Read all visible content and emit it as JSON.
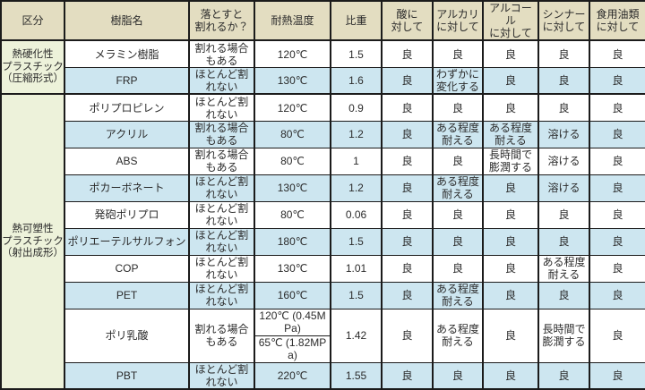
{
  "table": {
    "columns": [
      "区分",
      "樹脂名",
      "落とすと\n割れるか？",
      "耐熱温度",
      "比重",
      "酸に\n対して",
      "アルカリ\nに対して",
      "アルコール\nに対して",
      "シンナー\nに対して",
      "食用油類\nに対して"
    ],
    "colors": {
      "header_bg": "#e3ddc1",
      "category_bg": "#edf2da",
      "row_blue_bg": "#cde6f0",
      "row_white_bg": "#ffffff",
      "border": "#1b1b1b"
    },
    "sections": [
      {
        "category": "熱硬化性\nプラスチック\n（圧縮形式）",
        "rows": [
          {
            "name": "メラミン樹脂",
            "drop": "割れる場合もある",
            "temp": "120℃",
            "gravity": "1.5",
            "acid": "良",
            "alkali": "良",
            "alcohol": "良",
            "thinner": "良",
            "oil": "良",
            "shade": "white"
          },
          {
            "name": "FRP",
            "drop": "ほとんど割れない",
            "temp": "130℃",
            "gravity": "1.6",
            "acid": "良",
            "alkali": "わずかに変化する",
            "alcohol": "良",
            "thinner": "良",
            "oil": "良",
            "shade": "blue"
          }
        ]
      },
      {
        "category": "熱可塑性\nプラスチック\n（射出成形）",
        "rows": [
          {
            "name": "ポリプロピレン",
            "drop": "ほとんど割れない",
            "temp": "120℃",
            "gravity": "0.9",
            "acid": "良",
            "alkali": "良",
            "alcohol": "良",
            "thinner": "良",
            "oil": "良",
            "shade": "white"
          },
          {
            "name": "アクリル",
            "drop": "割れる場合もある",
            "temp": "80℃",
            "gravity": "1.2",
            "acid": "良",
            "alkali": "ある程度耐える",
            "alcohol": "ある程度耐える",
            "thinner": "溶ける",
            "oil": "良",
            "shade": "blue"
          },
          {
            "name": "ABS",
            "drop": "割れる場合もある",
            "temp": "80℃",
            "gravity": "1",
            "acid": "良",
            "alkali": "良",
            "alcohol": "長時間で膨潤する",
            "thinner": "溶ける",
            "oil": "良",
            "shade": "white"
          },
          {
            "name": "ポカーボネート",
            "drop": "ほとんど割れない",
            "temp": "130℃",
            "gravity": "1.2",
            "acid": "良",
            "alkali": "ある程度耐える",
            "alcohol": "良",
            "thinner": "溶ける",
            "oil": "良",
            "shade": "blue"
          },
          {
            "name": "発砲ポリプロ",
            "drop": "ほとんど割れない",
            "temp": "80℃",
            "gravity": "0.06",
            "acid": "良",
            "alkali": "良",
            "alcohol": "良",
            "thinner": "良",
            "oil": "良",
            "shade": "white"
          },
          {
            "name": "ポリエーテルサルフォン",
            "drop": "ほとんど割れない",
            "temp": "180℃",
            "gravity": "1.5",
            "acid": "良",
            "alkali": "良",
            "alcohol": "良",
            "thinner": "良",
            "oil": "良",
            "shade": "blue"
          },
          {
            "name": "COP",
            "drop": "ほとんど割れない",
            "temp": "130℃",
            "gravity": "1.01",
            "acid": "良",
            "alkali": "良",
            "alcohol": "良",
            "thinner": "ある程度耐える",
            "oil": "良",
            "shade": "white"
          },
          {
            "name": "PET",
            "drop": "ほとんど割れない",
            "temp": "160℃",
            "gravity": "1.5",
            "acid": "良",
            "alkali": "ある程度耐える",
            "alcohol": "良",
            "thinner": "良",
            "oil": "良",
            "shade": "blue"
          },
          {
            "name": "ポリ乳酸",
            "drop": "割れる場合もある",
            "temp": [
              "120℃ (0.45MPa)",
              "65℃ (1.82MPa)"
            ],
            "gravity": "1.42",
            "acid": "良",
            "alkali": "ある程度耐える",
            "alcohol": "良",
            "thinner": "長時間で膨潤する",
            "oil": "良",
            "shade": "white"
          },
          {
            "name": "PBT",
            "drop": "ほとんど割れない",
            "temp": "220℃",
            "gravity": "1.55",
            "acid": "良",
            "alkali": "良",
            "alcohol": "良",
            "thinner": "良",
            "oil": "良",
            "shade": "blue"
          }
        ]
      }
    ]
  }
}
